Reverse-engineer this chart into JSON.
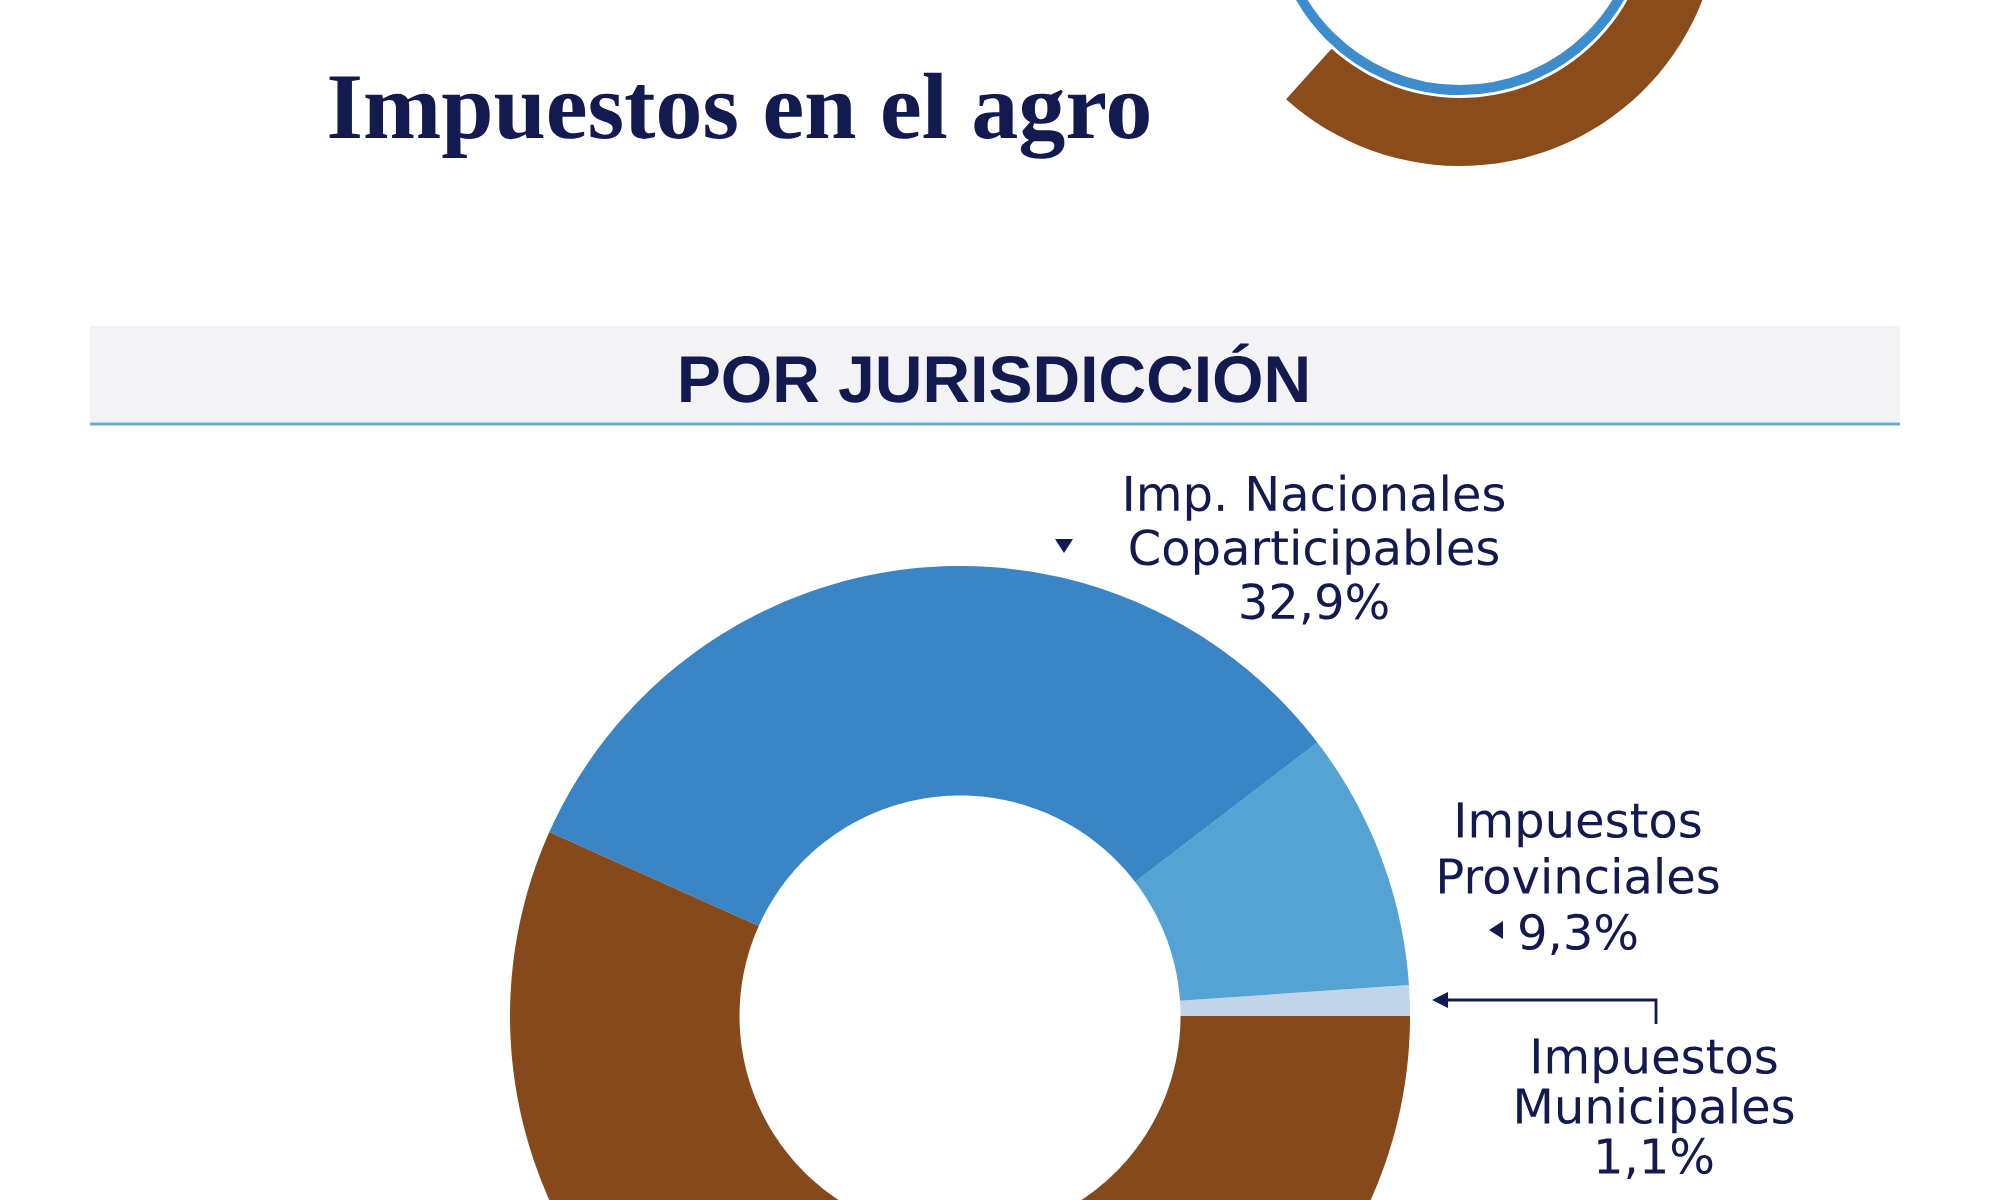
{
  "chart_data": {
    "type": "donut",
    "title": "Impuestos en el agro",
    "subtitle": "POR JURISDICCIÓN",
    "categories": [
      "Impuestos Municipales",
      "Impuestos Provinciales",
      "Imp. Nacionales Coparticipables",
      null
    ],
    "values": [
      1.1,
      9.3,
      32.9,
      56.7
    ],
    "colors": [
      "#c2d4ea",
      "#55a3d2",
      "#3a85c5",
      "#86491b"
    ],
    "value_labels": [
      "1,1%",
      "9,3%",
      "32,9%",
      null
    ]
  }
}
